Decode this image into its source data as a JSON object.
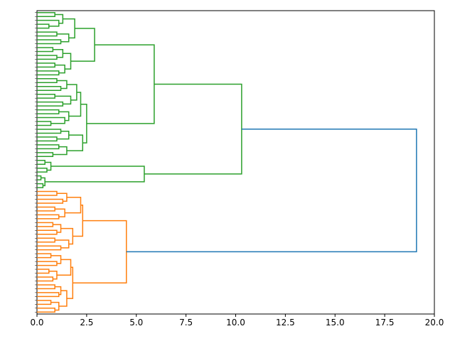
{
  "chart_data": {
    "type": "dendrogram",
    "orientation": "right",
    "xlim": [
      0,
      20
    ],
    "xticks": [
      {
        "value": 0,
        "label": "0.0"
      },
      2.5,
      {
        "value": 5,
        "label": "5.0"
      },
      7.5,
      {
        "value": 10,
        "label": "10.0"
      },
      12.5,
      {
        "value": 15,
        "label": "15.0"
      },
      17.5,
      {
        "value": 20,
        "label": "20.0"
      }
    ],
    "tree": {
      "height": 19.1,
      "color": "#1f77b4",
      "children": [
        {
          "height": 10.3,
          "color": "#2ca02c",
          "children": [
            {
              "height": 5.9,
              "children": [
                {
                  "height": 2.9,
                  "children": [
                    {
                      "height": 1.9,
                      "children": [
                        {
                          "height": 1.3,
                          "children": [
                            {
                              "height": 0.9,
                              "children": [
                                null,
                                null
                              ]
                            },
                            {
                              "height": 1.1,
                              "children": [
                                null,
                                {
                                  "height": 0.6,
                                  "children": [
                                    null,
                                    null
                                  ]
                                }
                              ]
                            }
                          ]
                        },
                        {
                          "height": 1.6,
                          "children": [
                            {
                              "height": 1.0,
                              "children": [
                                null,
                                null
                              ]
                            },
                            {
                              "height": 1.2,
                              "children": [
                                null,
                                null
                              ]
                            }
                          ]
                        }
                      ]
                    },
                    {
                      "height": 1.7,
                      "children": [
                        {
                          "height": 1.3,
                          "children": [
                            {
                              "height": 0.8,
                              "children": [
                                null,
                                null
                              ]
                            },
                            {
                              "height": 1.0,
                              "children": [
                                null,
                                null
                              ]
                            }
                          ]
                        },
                        {
                          "height": 1.4,
                          "children": [
                            {
                              "height": 0.9,
                              "children": [
                                null,
                                null
                              ]
                            },
                            {
                              "height": 1.1,
                              "children": [
                                null,
                                null
                              ]
                            }
                          ]
                        }
                      ]
                    }
                  ]
                },
                {
                  "height": 2.5,
                  "children": [
                    {
                      "height": 2.2,
                      "children": [
                        {
                          "height": 2.0,
                          "children": [
                            {
                              "height": 1.5,
                              "children": [
                                {
                                  "height": 1.0,
                                  "children": [
                                    null,
                                    null
                                  ]
                                },
                                {
                                  "height": 1.2,
                                  "children": [
                                    null,
                                    null
                                  ]
                                }
                              ]
                            },
                            {
                              "height": 1.7,
                              "children": [
                                {
                                  "height": 0.9,
                                  "children": [
                                    null,
                                    null
                                  ]
                                },
                                {
                                  "height": 1.3,
                                  "children": [
                                    null,
                                    null
                                  ]
                                }
                              ]
                            }
                          ]
                        },
                        {
                          "height": 1.6,
                          "children": [
                            {
                              "height": 1.1,
                              "children": [
                                null,
                                null
                              ]
                            },
                            {
                              "height": 1.4,
                              "children": [
                                null,
                                {
                                  "height": 0.7,
                                  "children": [
                                    null,
                                    null
                                  ]
                                }
                              ]
                            }
                          ]
                        }
                      ]
                    },
                    {
                      "height": 2.3,
                      "children": [
                        {
                          "height": 1.6,
                          "children": [
                            {
                              "height": 1.2,
                              "children": [
                                null,
                                null
                              ]
                            },
                            {
                              "height": 1.0,
                              "children": [
                                null,
                                null
                              ]
                            }
                          ]
                        },
                        {
                          "height": 1.5,
                          "children": [
                            {
                              "height": 1.1,
                              "children": [
                                null,
                                null
                              ]
                            },
                            {
                              "height": 0.8,
                              "children": [
                                null,
                                null
                              ]
                            }
                          ]
                        }
                      ]
                    }
                  ]
                }
              ]
            },
            {
              "height": 5.4,
              "children": [
                {
                  "height": 0.7,
                  "children": [
                    {
                      "height": 0.4,
                      "children": [
                        null,
                        null
                      ]
                    },
                    {
                      "height": 0.5,
                      "children": [
                        null,
                        null
                      ]
                    }
                  ]
                },
                {
                  "height": 0.4,
                  "children": [
                    {
                      "height": 0.2,
                      "children": [
                        null,
                        null
                      ]
                    },
                    {
                      "height": 0.3,
                      "children": [
                        null,
                        null
                      ]
                    }
                  ]
                }
              ]
            }
          ]
        },
        {
          "height": 4.5,
          "color": "#ff7f0e",
          "children": [
            {
              "height": 2.3,
              "children": [
                {
                  "height": 2.2,
                  "children": [
                    {
                      "height": 1.5,
                      "children": [
                        {
                          "height": 1.0,
                          "children": [
                            null,
                            null
                          ]
                        },
                        {
                          "height": 1.3,
                          "children": [
                            null,
                            null
                          ]
                        }
                      ]
                    },
                    {
                      "height": 1.4,
                      "children": [
                        {
                          "height": 0.9,
                          "children": [
                            null,
                            null
                          ]
                        },
                        {
                          "height": 1.1,
                          "children": [
                            null,
                            null
                          ]
                        }
                      ]
                    }
                  ]
                },
                {
                  "height": 1.8,
                  "children": [
                    {
                      "height": 1.2,
                      "children": [
                        {
                          "height": 0.8,
                          "children": [
                            null,
                            null
                          ]
                        },
                        {
                          "height": 1.0,
                          "children": [
                            null,
                            null
                          ]
                        }
                      ]
                    },
                    {
                      "height": 1.6,
                      "children": [
                        {
                          "height": 0.9,
                          "children": [
                            null,
                            null
                          ]
                        },
                        {
                          "height": 1.2,
                          "children": [
                            null,
                            null
                          ]
                        }
                      ]
                    }
                  ]
                }
              ]
            },
            {
              "height": 1.8,
              "children": [
                {
                  "height": 1.7,
                  "children": [
                    {
                      "height": 1.2,
                      "children": [
                        {
                          "height": 0.7,
                          "children": [
                            null,
                            null
                          ]
                        },
                        {
                          "height": 1.0,
                          "children": [
                            null,
                            null
                          ]
                        }
                      ]
                    },
                    {
                      "height": 1.0,
                      "children": [
                        {
                          "height": 0.6,
                          "children": [
                            null,
                            null
                          ]
                        },
                        {
                          "height": 0.8,
                          "children": [
                            null,
                            null
                          ]
                        }
                      ]
                    }
                  ]
                },
                {
                  "height": 1.5,
                  "children": [
                    {
                      "height": 1.2,
                      "children": [
                        {
                          "height": 0.9,
                          "children": [
                            null,
                            null
                          ]
                        },
                        {
                          "height": 1.1,
                          "children": [
                            null,
                            null
                          ]
                        }
                      ]
                    },
                    {
                      "height": 1.1,
                      "children": [
                        {
                          "height": 0.7,
                          "children": [
                            null,
                            null
                          ]
                        },
                        {
                          "height": 0.9,
                          "children": [
                            null,
                            null
                          ]
                        }
                      ]
                    }
                  ]
                }
              ]
            }
          ]
        }
      ]
    }
  }
}
